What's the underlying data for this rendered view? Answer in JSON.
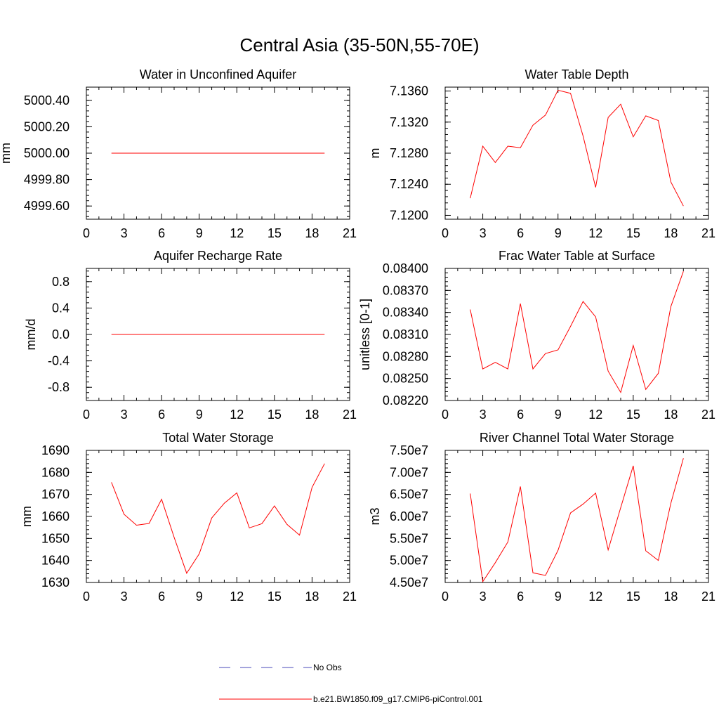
{
  "figure": {
    "title": "Central Asia (35-50N,55-70E)",
    "colors": {
      "model": "#ff0000",
      "obs": "#4a4ab8",
      "axis": "#000000"
    }
  },
  "legend": {
    "entries": [
      {
        "label": "No Obs",
        "style": "dashed",
        "color": "#4a4ab8"
      },
      {
        "label": "b.e21.BW1850.f09_g17.CMIP6-piControl.001",
        "style": "solid",
        "color": "#ff0000"
      }
    ]
  },
  "chart_data": [
    {
      "type": "line",
      "title": "Water in Unconfined Aquifer",
      "xlabel": "",
      "ylabel": "mm",
      "xlim": [
        0,
        21
      ],
      "ylim": [
        4999.5,
        5000.5
      ],
      "xticks": [
        "0",
        "3",
        "6",
        "9",
        "12",
        "15",
        "18",
        "21"
      ],
      "yticks": [
        4999.6,
        4999.8,
        5000.0,
        5000.2,
        5000.4
      ],
      "ytick_labels": [
        "4999.60",
        "4999.80",
        "5000.00",
        "5000.20",
        "5000.40"
      ],
      "x": [
        2,
        3,
        4,
        5,
        6,
        7,
        8,
        9,
        10,
        11,
        12,
        13,
        14,
        15,
        16,
        17,
        18,
        19
      ],
      "series": [
        {
          "name": "b.e21.BW1850.f09_g17.CMIP6-piControl.001",
          "values": [
            5000,
            5000,
            5000,
            5000,
            5000,
            5000,
            5000,
            5000,
            5000,
            5000,
            5000,
            5000,
            5000,
            5000,
            5000,
            5000,
            5000,
            5000
          ]
        }
      ]
    },
    {
      "type": "line",
      "title": "Water Table Depth",
      "xlabel": "",
      "ylabel": "m",
      "xlim": [
        0,
        21
      ],
      "ylim": [
        7.1195,
        7.1365
      ],
      "xticks": [
        "0",
        "3",
        "6",
        "9",
        "12",
        "15",
        "18",
        "21"
      ],
      "yticks": [
        7.12,
        7.124,
        7.128,
        7.132,
        7.136
      ],
      "ytick_labels": [
        "7.1200",
        "7.1240",
        "7.1280",
        "7.1320",
        "7.1360"
      ],
      "x": [
        2,
        3,
        4,
        5,
        6,
        7,
        8,
        9,
        10,
        11,
        12,
        13,
        14,
        15,
        16,
        17,
        18,
        19
      ],
      "series": [
        {
          "name": "b.e21.BW1850.f09_g17.CMIP6-piControl.001",
          "values": [
            7.1222,
            7.1289,
            7.1268,
            7.1289,
            7.1287,
            7.1316,
            7.1329,
            7.1361,
            7.1357,
            7.1302,
            7.1236,
            7.1326,
            7.1343,
            7.1301,
            7.1328,
            7.1322,
            7.1243,
            7.1212
          ]
        }
      ]
    },
    {
      "type": "line",
      "title": "Aquifer Recharge Rate",
      "xlabel": "",
      "ylabel": "mm/d",
      "xlim": [
        0,
        21
      ],
      "ylim": [
        -1.0,
        1.0
      ],
      "xticks": [
        "0",
        "3",
        "6",
        "9",
        "12",
        "15",
        "18",
        "21"
      ],
      "yticks": [
        -0.8,
        -0.4,
        0.0,
        0.4,
        0.8
      ],
      "ytick_labels": [
        "-0.8",
        "-0.4",
        "0.0",
        "0.4",
        "0.8"
      ],
      "x": [
        2,
        3,
        4,
        5,
        6,
        7,
        8,
        9,
        10,
        11,
        12,
        13,
        14,
        15,
        16,
        17,
        18,
        19
      ],
      "series": [
        {
          "name": "b.e21.BW1850.f09_g17.CMIP6-piControl.001",
          "values": [
            0,
            0,
            0,
            0,
            0,
            0,
            0,
            0,
            0,
            0,
            0,
            0,
            0,
            0,
            0,
            0,
            0,
            0
          ]
        }
      ]
    },
    {
      "type": "line",
      "title": "Frac Water Table at Surface",
      "xlabel": "",
      "ylabel": "unitless [0-1]",
      "xlim": [
        0,
        21
      ],
      "ylim": [
        0.0822,
        0.084
      ],
      "xticks": [
        "0",
        "3",
        "6",
        "9",
        "12",
        "15",
        "18",
        "21"
      ],
      "yticks": [
        0.0822,
        0.0825,
        0.0828,
        0.0831,
        0.0834,
        0.0837,
        0.084
      ],
      "ytick_labels": [
        "0.08220",
        "0.08250",
        "0.08280",
        "0.08310",
        "0.08340",
        "0.08370",
        "0.08400"
      ],
      "x": [
        2,
        3,
        4,
        5,
        6,
        7,
        8,
        9,
        10,
        11,
        12,
        13,
        14,
        15,
        16,
        17,
        18,
        19
      ],
      "series": [
        {
          "name": "b.e21.BW1850.f09_g17.CMIP6-piControl.001",
          "values": [
            0.08344,
            0.08263,
            0.08272,
            0.08263,
            0.08352,
            0.08263,
            0.08284,
            0.08289,
            0.08321,
            0.08355,
            0.08334,
            0.0826,
            0.08231,
            0.08295,
            0.08235,
            0.08257,
            0.08348,
            0.08396
          ]
        }
      ]
    },
    {
      "type": "line",
      "title": "Total Water Storage",
      "xlabel": "",
      "ylabel": "mm",
      "xlim": [
        0,
        21
      ],
      "ylim": [
        1630,
        1690
      ],
      "xticks": [
        "0",
        "3",
        "6",
        "9",
        "12",
        "15",
        "18",
        "21"
      ],
      "yticks": [
        1630,
        1640,
        1650,
        1660,
        1670,
        1680,
        1690
      ],
      "ytick_labels": [
        "1630",
        "1640",
        "1650",
        "1660",
        "1670",
        "1680",
        "1690"
      ],
      "x": [
        2,
        3,
        4,
        5,
        6,
        7,
        8,
        9,
        10,
        11,
        12,
        13,
        14,
        15,
        16,
        17,
        18,
        19
      ],
      "series": [
        {
          "name": "b.e21.BW1850.f09_g17.CMIP6-piControl.001",
          "values": [
            1675.5,
            1661,
            1656,
            1656.8,
            1667.8,
            1650.5,
            1634.2,
            1643,
            1659.3,
            1666,
            1670.7,
            1654.8,
            1656.7,
            1664.8,
            1656.4,
            1651.5,
            1673.2,
            1684
          ]
        }
      ]
    },
    {
      "type": "line",
      "title": "River Channel Total Water Storage",
      "xlabel": "",
      "ylabel": "m3",
      "xlim": [
        0,
        21
      ],
      "ylim": [
        45000000,
        75000000
      ],
      "xticks": [
        "0",
        "3",
        "6",
        "9",
        "12",
        "15",
        "18",
        "21"
      ],
      "yticks": [
        45000000,
        50000000,
        55000000,
        60000000,
        65000000,
        70000000,
        75000000
      ],
      "ytick_labels": [
        "4.50e7",
        "5.00e7",
        "5.50e7",
        "6.00e7",
        "6.50e7",
        "7.00e7",
        "7.50e7"
      ],
      "x": [
        2,
        3,
        4,
        5,
        6,
        7,
        8,
        9,
        10,
        11,
        12,
        13,
        14,
        15,
        16,
        17,
        18,
        19
      ],
      "series": [
        {
          "name": "b.e21.BW1850.f09_g17.CMIP6-piControl.001",
          "values": [
            65200000,
            45200000,
            49500000,
            54200000,
            66800000,
            47200000,
            46600000,
            52300000,
            60800000,
            62800000,
            65300000,
            52400000,
            62000000,
            71500000,
            52200000,
            50000000,
            63000000,
            73200000
          ]
        }
      ]
    }
  ]
}
